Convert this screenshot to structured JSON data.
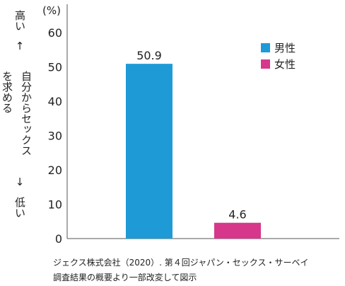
{
  "chart_data": {
    "type": "bar",
    "categories": [
      "男性",
      "女性"
    ],
    "values": [
      50.9,
      4.6
    ],
    "value_labels": [
      "50.9",
      "4.6"
    ],
    "colors": [
      "#1e9bd7",
      "#d6378a"
    ],
    "ylim": [
      0,
      60
    ],
    "yticks": [
      0,
      10,
      20,
      30,
      40,
      50,
      60
    ],
    "yunit": "(%)",
    "ylabel": {
      "high": "高い",
      "high_color": "#c8245e",
      "up_arrow": "↑",
      "line1": "自分からセックス",
      "line2": "を求める",
      "down_arrow": "↓",
      "low": "低い",
      "low_color": "#3a4a9a"
    },
    "legend": {
      "position": "top-right",
      "entries": [
        "男性",
        "女性"
      ]
    },
    "grid": false
  },
  "source": {
    "line1": "ジェクス株式会社（2020）. 第４回ジャパン・セックス・サーベイ",
    "line2": "調査結果の概要より一部改変して図示"
  }
}
